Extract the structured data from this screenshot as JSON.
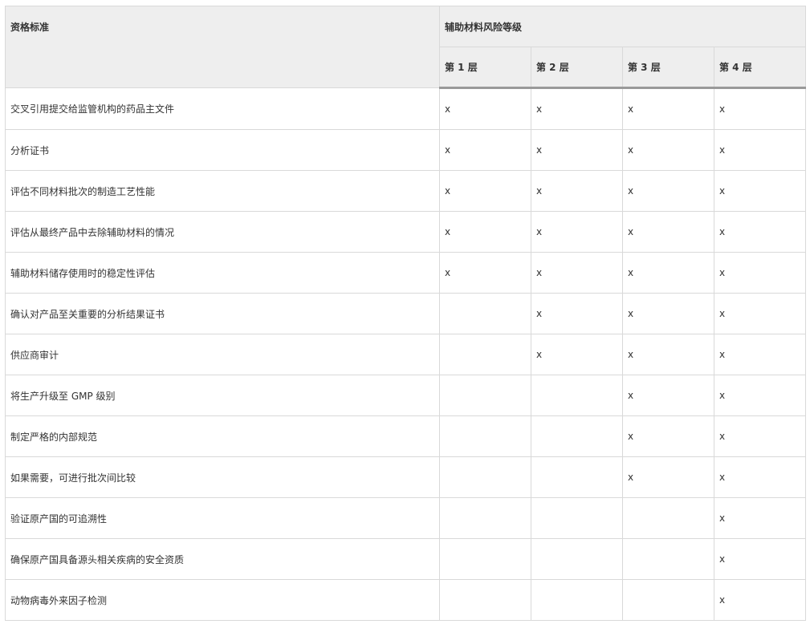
{
  "header": {
    "criteria": "资格标准",
    "risk_level": "辅助材料风险等级",
    "tiers": [
      "第 1 层",
      "第 2 层",
      "第 3 层",
      "第 4 层"
    ]
  },
  "rows": [
    {
      "label": "交叉引用提交给监管机构的药品主文件",
      "marks": [
        "x",
        "x",
        "x",
        "x"
      ]
    },
    {
      "label": "分析证书",
      "marks": [
        "x",
        "x",
        "x",
        "x"
      ]
    },
    {
      "label": "评估不同材料批次的制造工艺性能",
      "marks": [
        "x",
        "x",
        "x",
        "x"
      ]
    },
    {
      "label": "评估从最终产品中去除辅助材料的情况",
      "marks": [
        "x",
        "x",
        "x",
        "x"
      ]
    },
    {
      "label": "辅助材料储存使用时的稳定性评估",
      "marks": [
        "x",
        "x",
        "x",
        "x"
      ]
    },
    {
      "label": "确认对产品至关重要的分析结果证书",
      "marks": [
        "",
        "x",
        "x",
        "x"
      ]
    },
    {
      "label": "供应商审计",
      "marks": [
        "",
        "x",
        "x",
        "x"
      ]
    },
    {
      "label": "将生产升级至 GMP 级别",
      "marks": [
        "",
        "",
        "x",
        "x"
      ]
    },
    {
      "label": "制定严格的内部规范",
      "marks": [
        "",
        "",
        "x",
        "x"
      ]
    },
    {
      "label": "如果需要，可进行批次间比较",
      "marks": [
        "",
        "",
        "x",
        "x"
      ]
    },
    {
      "label": "验证原产国的可追溯性",
      "marks": [
        "",
        "",
        "",
        "x"
      ]
    },
    {
      "label": "确保原产国具备源头相关疾病的安全资质",
      "marks": [
        "",
        "",
        "",
        "x"
      ]
    },
    {
      "label": "动物病毒外来因子检测",
      "marks": [
        "",
        "",
        "",
        "x"
      ]
    }
  ]
}
